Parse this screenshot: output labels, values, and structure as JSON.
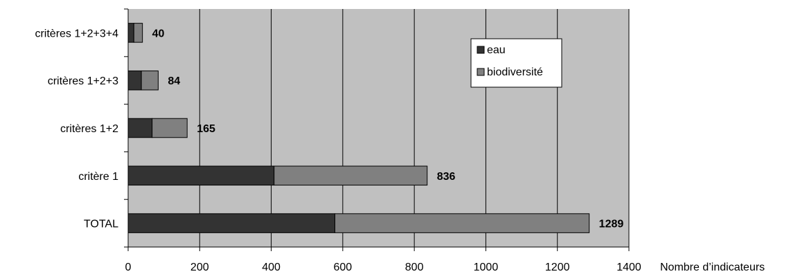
{
  "chart_data": {
    "type": "bar",
    "orientation": "horizontal",
    "stacked": true,
    "categories": [
      "TOTAL",
      "critère 1",
      "critères 1+2",
      "critères 1+2+3",
      "critères 1+2+3+4"
    ],
    "series": [
      {
        "name": "eau",
        "values": [
          578,
          408,
          67,
          37,
          16
        ],
        "color": "#333333"
      },
      {
        "name": "biodiversité",
        "values": [
          711,
          428,
          98,
          47,
          24
        ],
        "color": "#808080"
      }
    ],
    "totals": [
      "1289",
      "836",
      "165",
      "84",
      "40"
    ],
    "xlabel": "Nombre d’indicateurs",
    "xlim": [
      0,
      1400
    ],
    "xticks": [
      0,
      200,
      400,
      600,
      800,
      1000,
      1200,
      1400
    ],
    "grid": "vertical",
    "legend_position": "top-right",
    "plot_background": "#c0c0c0"
  }
}
